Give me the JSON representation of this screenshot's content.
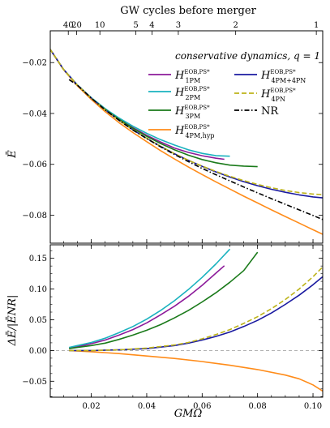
{
  "title": "GW cycles before merger",
  "xlabel": "GMΩ",
  "ylabel_top": "Ē",
  "ylabel_bottom": "ΔĒ/|ĒNR|",
  "legend_header": "conservative dynamics,  q = 1",
  "colors": {
    "purple": "#8c1a9a",
    "cyan": "#1ab2bf",
    "green": "#1a7a1a",
    "orange": "#ff8c1a",
    "blue": "#1a1aa0",
    "olive": "#bdb319",
    "nr": "#000000",
    "zeroline": "#999999"
  },
  "chart_data": [
    {
      "type": "line",
      "panel": "top",
      "ylabel": "Ē",
      "xlim": [
        0.0052,
        0.1035
      ],
      "ylim": [
        -0.091,
        -0.0075
      ],
      "yticks": [
        -0.02,
        -0.04,
        -0.06,
        -0.08
      ],
      "ytick_labels": [
        "−0.02",
        "−0.04",
        "−0.06",
        "−0.08"
      ],
      "top_axis_label": "GW cycles before merger",
      "top_ticks": [
        {
          "label": "40",
          "x": 0.0117
        },
        {
          "label": "20",
          "x": 0.0147
        },
        {
          "label": "10",
          "x": 0.0231
        },
        {
          "label": "5",
          "x": 0.0361
        },
        {
          "label": "4",
          "x": 0.0419
        },
        {
          "label": "3",
          "x": 0.0514
        },
        {
          "label": "2",
          "x": 0.0721
        },
        {
          "label": "1",
          "x": 0.1012
        }
      ],
      "series": [
        {
          "key": "H1PM",
          "legend": {
            "base": "H",
            "sup": "EOB,PS*",
            "sub": "1PM"
          },
          "color": "purple",
          "dash": "solid",
          "x": [
            0.005,
            0.01,
            0.015,
            0.02,
            0.025,
            0.03,
            0.035,
            0.04,
            0.045,
            0.05,
            0.055,
            0.06,
            0.065,
            0.068
          ],
          "y": [
            -0.0145,
            -0.0227,
            -0.0289,
            -0.034,
            -0.0384,
            -0.0422,
            -0.0456,
            -0.0486,
            -0.0512,
            -0.0536,
            -0.0553,
            -0.0566,
            -0.0576,
            -0.058
          ]
        },
        {
          "key": "H2PM",
          "legend": {
            "base": "H",
            "sup": "EOB,PS*",
            "sub": "2PM"
          },
          "color": "cyan",
          "dash": "solid",
          "x": [
            0.005,
            0.01,
            0.015,
            0.02,
            0.025,
            0.03,
            0.035,
            0.04,
            0.045,
            0.05,
            0.055,
            0.06,
            0.065,
            0.07
          ],
          "y": [
            -0.0145,
            -0.0227,
            -0.0288,
            -0.0338,
            -0.0381,
            -0.0418,
            -0.045,
            -0.0478,
            -0.0503,
            -0.0524,
            -0.0543,
            -0.0557,
            -0.0566,
            -0.0568
          ]
        },
        {
          "key": "H3PM",
          "legend": {
            "base": "H",
            "sup": "EOB,PS*",
            "sub": "3PM"
          },
          "color": "green",
          "dash": "solid",
          "x": [
            0.005,
            0.01,
            0.015,
            0.02,
            0.025,
            0.03,
            0.035,
            0.04,
            0.045,
            0.05,
            0.055,
            0.06,
            0.065,
            0.07,
            0.075,
            0.08
          ],
          "y": [
            -0.0145,
            -0.0227,
            -0.0289,
            -0.034,
            -0.0384,
            -0.0423,
            -0.0458,
            -0.049,
            -0.0518,
            -0.0543,
            -0.0564,
            -0.0581,
            -0.0594,
            -0.0603,
            -0.0607,
            -0.0609
          ]
        },
        {
          "key": "H4PMhyp",
          "legend": {
            "base": "H",
            "sup": "EOB,PS*",
            "sub": "4PM,hyp"
          },
          "color": "orange",
          "dash": "solid",
          "x": [
            0.005,
            0.01,
            0.015,
            0.02,
            0.025,
            0.03,
            0.035,
            0.04,
            0.045,
            0.05,
            0.055,
            0.06,
            0.065,
            0.07,
            0.075,
            0.08,
            0.085,
            0.09,
            0.095,
            0.1,
            0.1035
          ],
          "y": [
            -0.0145,
            -0.0228,
            -0.0292,
            -0.0345,
            -0.0393,
            -0.0436,
            -0.0475,
            -0.0511,
            -0.0546,
            -0.0579,
            -0.061,
            -0.064,
            -0.0669,
            -0.0697,
            -0.0725,
            -0.0752,
            -0.0779,
            -0.0805,
            -0.0831,
            -0.0857,
            -0.0875
          ]
        },
        {
          "key": "H4PM4PN",
          "legend": {
            "base": "H",
            "sup": "EOB,PS*",
            "sub": "4PM+4PN"
          },
          "color": "blue",
          "dash": "solid",
          "x": [
            0.005,
            0.01,
            0.015,
            0.02,
            0.025,
            0.03,
            0.035,
            0.04,
            0.045,
            0.05,
            0.055,
            0.06,
            0.065,
            0.07,
            0.075,
            0.08,
            0.085,
            0.09,
            0.095,
            0.1,
            0.1035
          ],
          "y": [
            -0.0145,
            -0.0227,
            -0.0289,
            -0.034,
            -0.0386,
            -0.0427,
            -0.0464,
            -0.0498,
            -0.0529,
            -0.0558,
            -0.0584,
            -0.0608,
            -0.063,
            -0.065,
            -0.0668,
            -0.0684,
            -0.0698,
            -0.071,
            -0.072,
            -0.0728,
            -0.0732
          ]
        },
        {
          "key": "H4PN",
          "legend": {
            "base": "H",
            "sup": "EOB,PS*",
            "sub": "4PN"
          },
          "color": "olive",
          "dash": "dashed",
          "x": [
            0.005,
            0.01,
            0.015,
            0.02,
            0.025,
            0.03,
            0.035,
            0.04,
            0.045,
            0.05,
            0.055,
            0.06,
            0.065,
            0.07,
            0.075,
            0.08,
            0.085,
            0.09,
            0.095,
            0.1,
            0.1035
          ],
          "y": [
            -0.0145,
            -0.0227,
            -0.0289,
            -0.034,
            -0.0386,
            -0.0427,
            -0.0464,
            -0.0498,
            -0.0529,
            -0.0558,
            -0.0584,
            -0.0607,
            -0.0628,
            -0.0647,
            -0.0664,
            -0.0679,
            -0.0692,
            -0.0703,
            -0.0711,
            -0.0717,
            -0.0719
          ]
        },
        {
          "key": "NR",
          "legend": {
            "base": "NR"
          },
          "color": "nr",
          "dash": "dashdot",
          "x": [
            0.012,
            0.015,
            0.02,
            0.025,
            0.03,
            0.035,
            0.04,
            0.045,
            0.05,
            0.055,
            0.06,
            0.065,
            0.07,
            0.075,
            0.08,
            0.085,
            0.09,
            0.095,
            0.1,
            0.1035
          ],
          "y": [
            -0.0267,
            -0.0289,
            -0.034,
            -0.0386,
            -0.0427,
            -0.0465,
            -0.0499,
            -0.0531,
            -0.0561,
            -0.0589,
            -0.0616,
            -0.0641,
            -0.0665,
            -0.0689,
            -0.0712,
            -0.0735,
            -0.0757,
            -0.0779,
            -0.0801,
            -0.0817
          ]
        }
      ]
    },
    {
      "type": "line",
      "panel": "bottom",
      "ylabel": "ΔĒ/|ĒNR|",
      "xlabel": "GMΩ",
      "xlim": [
        0.0052,
        0.1035
      ],
      "ylim": [
        -0.076,
        0.172
      ],
      "xticks": [
        0.02,
        0.04,
        0.06,
        0.08,
        0.1
      ],
      "xtick_labels": [
        "0.02",
        "0.04",
        "0.06",
        "0.08",
        "0.10"
      ],
      "yticks": [
        -0.05,
        0.0,
        0.05,
        0.1,
        0.15
      ],
      "ytick_labels": [
        "−0.05",
        "0.00",
        "0.05",
        "0.10",
        "0.15"
      ],
      "hline": 0.0,
      "series": [
        {
          "key": "H1PM",
          "color": "purple",
          "dash": "solid",
          "x": [
            0.012,
            0.015,
            0.02,
            0.025,
            0.03,
            0.035,
            0.04,
            0.045,
            0.05,
            0.055,
            0.06,
            0.065,
            0.068
          ],
          "y": [
            0.004,
            0.006,
            0.011,
            0.017,
            0.025,
            0.034,
            0.045,
            0.058,
            0.072,
            0.088,
            0.106,
            0.126,
            0.138
          ]
        },
        {
          "key": "H2PM",
          "color": "cyan",
          "dash": "solid",
          "x": [
            0.012,
            0.015,
            0.02,
            0.025,
            0.03,
            0.035,
            0.04,
            0.045,
            0.05,
            0.055,
            0.06,
            0.065,
            0.07
          ],
          "y": [
            0.005,
            0.008,
            0.013,
            0.02,
            0.029,
            0.039,
            0.051,
            0.065,
            0.081,
            0.099,
            0.119,
            0.141,
            0.165
          ]
        },
        {
          "key": "H3PM",
          "color": "green",
          "dash": "solid",
          "x": [
            0.012,
            0.015,
            0.02,
            0.025,
            0.03,
            0.035,
            0.04,
            0.045,
            0.05,
            0.055,
            0.06,
            0.065,
            0.07,
            0.075,
            0.08
          ],
          "y": [
            0.003,
            0.005,
            0.008,
            0.012,
            0.018,
            0.025,
            0.033,
            0.042,
            0.053,
            0.065,
            0.079,
            0.094,
            0.111,
            0.13,
            0.16
          ]
        },
        {
          "key": "H4PMhyp",
          "color": "orange",
          "dash": "solid",
          "x": [
            0.012,
            0.02,
            0.03,
            0.04,
            0.05,
            0.06,
            0.07,
            0.08,
            0.09,
            0.095,
            0.1,
            0.1035
          ],
          "y": [
            0.0,
            -0.002,
            -0.005,
            -0.009,
            -0.013,
            -0.018,
            -0.024,
            -0.031,
            -0.04,
            -0.046,
            -0.056,
            -0.066
          ]
        },
        {
          "key": "H4PM4PN",
          "color": "blue",
          "dash": "solid",
          "x": [
            0.012,
            0.02,
            0.03,
            0.04,
            0.05,
            0.055,
            0.06,
            0.065,
            0.07,
            0.075,
            0.08,
            0.085,
            0.09,
            0.095,
            0.1,
            0.1035
          ],
          "y": [
            0.0,
            0.0,
            0.001,
            0.003,
            0.008,
            0.012,
            0.017,
            0.023,
            0.03,
            0.039,
            0.049,
            0.061,
            0.075,
            0.09,
            0.107,
            0.12
          ]
        },
        {
          "key": "H4PN",
          "color": "olive",
          "dash": "dashed",
          "x": [
            0.012,
            0.02,
            0.03,
            0.04,
            0.05,
            0.055,
            0.06,
            0.065,
            0.07,
            0.075,
            0.08,
            0.085,
            0.09,
            0.095,
            0.1,
            0.1035
          ],
          "y": [
            0.0,
            0.0,
            0.001,
            0.004,
            0.009,
            0.013,
            0.019,
            0.026,
            0.034,
            0.044,
            0.055,
            0.068,
            0.083,
            0.1,
            0.12,
            0.136
          ]
        }
      ]
    }
  ]
}
